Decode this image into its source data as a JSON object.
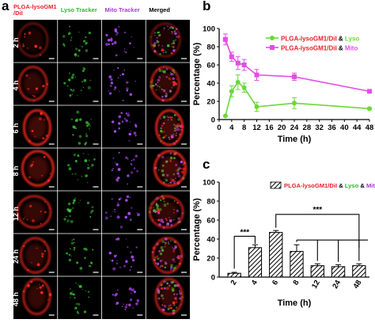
{
  "panel_a": {
    "letter": "a",
    "columns": [
      {
        "label_line1": "PLGA-lysoGM1",
        "label_line2": "/DiI",
        "color": "#e8202a",
        "channel": "red"
      },
      {
        "label_line1": "Lyso Tracker",
        "label_line2": "",
        "color": "#31b531",
        "channel": "green"
      },
      {
        "label_line1": "Mito Tracker",
        "label_line2": "",
        "color": "#a93ad6",
        "channel": "purple"
      },
      {
        "label_line1": "Merged",
        "label_line2": "",
        "color": "#000000",
        "channel": "merged"
      }
    ],
    "rows": [
      "2 h",
      "4 h",
      "6 h",
      "8 h",
      "12 h",
      "24 h",
      "48 h"
    ]
  },
  "chart_data": [
    {
      "panel": "b",
      "type": "line",
      "xlabel": "Time (h)",
      "ylabel": "Percentage (%)",
      "xlim": [
        0,
        48
      ],
      "ylim": [
        0,
        100
      ],
      "xticks": [
        0,
        4,
        8,
        12,
        16,
        20,
        24,
        28,
        32,
        36,
        40,
        44,
        48
      ],
      "yticks": [
        0,
        20,
        40,
        60,
        80,
        100
      ],
      "legend_position": "top-right",
      "series": [
        {
          "name_prefix": "PLGA-lysoGM1/DiI",
          "name_amp": "&",
          "name_suffix": "Lyso",
          "suffix_color": "#6bd83b",
          "color": "#6bd83b",
          "marker": "circle",
          "x": [
            2,
            4,
            6,
            8,
            12,
            24,
            48
          ],
          "y": [
            4,
            31,
            41,
            35,
            14,
            18,
            12
          ],
          "err": [
            0,
            6,
            8,
            5,
            5,
            6,
            1
          ]
        },
        {
          "name_prefix": "PLGA-lysoGM1/DiI",
          "name_amp": "&",
          "name_suffix": "Mito",
          "suffix_color": "#e14ee6",
          "color": "#e14ee6",
          "marker": "square",
          "x": [
            2,
            4,
            6,
            8,
            12,
            24,
            48
          ],
          "y": [
            88,
            69,
            62,
            60,
            49,
            47,
            31
          ],
          "err": [
            6,
            5,
            7,
            6,
            6,
            4,
            1
          ]
        }
      ]
    },
    {
      "panel": "c",
      "type": "bar",
      "xlabel": "Time (h)",
      "ylabel": "Percentage (%)",
      "categories": [
        "2",
        "4",
        "6",
        "8",
        "12",
        "24",
        "48"
      ],
      "ylim": [
        0,
        100
      ],
      "yticks": [
        0,
        20,
        40,
        60,
        80,
        100
      ],
      "legend_position": "top-right",
      "series": [
        {
          "name_prefix": "PLGA-lysoGM1/DiI",
          "name_amp": "&",
          "name_mid": "Lyso",
          "name_amp2": "&",
          "name_suffix": "Mito",
          "mid_color": "#31b531",
          "suffix_color": "#a93ad6",
          "values": [
            4,
            31,
            47,
            27,
            12,
            11,
            12
          ],
          "err": [
            1,
            3,
            2,
            7,
            2,
            2,
            2
          ]
        }
      ],
      "annotations": [
        {
          "label": "***",
          "from": "2",
          "to": "4"
        },
        {
          "label": "***",
          "from": "6",
          "to": [
            "8",
            "12",
            "24",
            "48"
          ]
        }
      ]
    }
  ]
}
